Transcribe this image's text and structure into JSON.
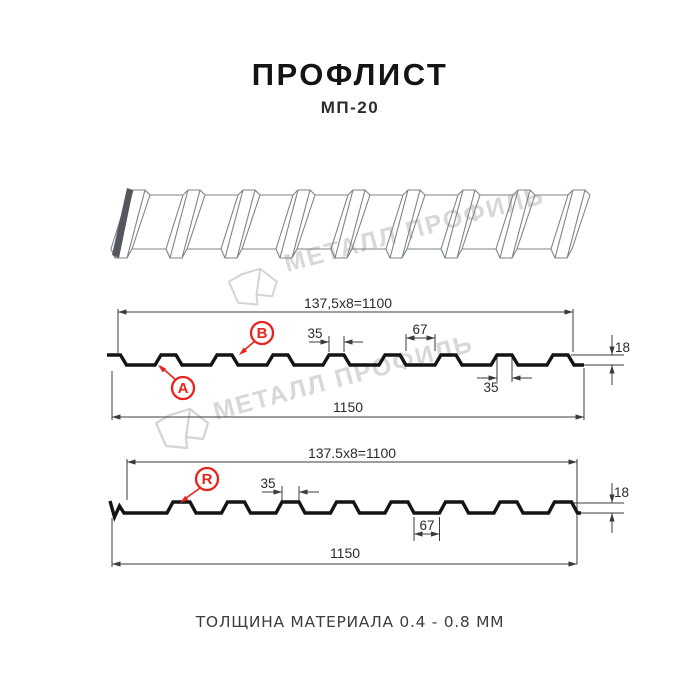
{
  "header": {
    "title": "ПРОФЛИСТ",
    "subtitle": "МП-20"
  },
  "watermark": {
    "text": "МЕТАЛЛ ПРОФИЛЬ"
  },
  "sections": {
    "top": {
      "dim_module": "137,5x8=1100",
      "dim_rib_top": "35",
      "dim_groove": "67",
      "dim_height": "18",
      "dim_rib_top_2": "35",
      "dim_overall": "1150",
      "label_a": "A",
      "label_b": "B"
    },
    "bottom": {
      "dim_module": "137.5x8=1100",
      "dim_rib_top": "35",
      "dim_groove": "67",
      "dim_height": "18",
      "dim_overall": "1150",
      "label_r": "R"
    }
  },
  "footer": {
    "note": "ТОЛЩИНА МАТЕРИАЛА 0.4 - 0.8 ММ"
  },
  "colors": {
    "accent": "#e8231d",
    "profile_line": "#141414",
    "dim_line": "#3b3b3b",
    "sheet_line": "#7d838a",
    "sheet_edge": "#54585d",
    "watermark": "#d8d8d8"
  }
}
